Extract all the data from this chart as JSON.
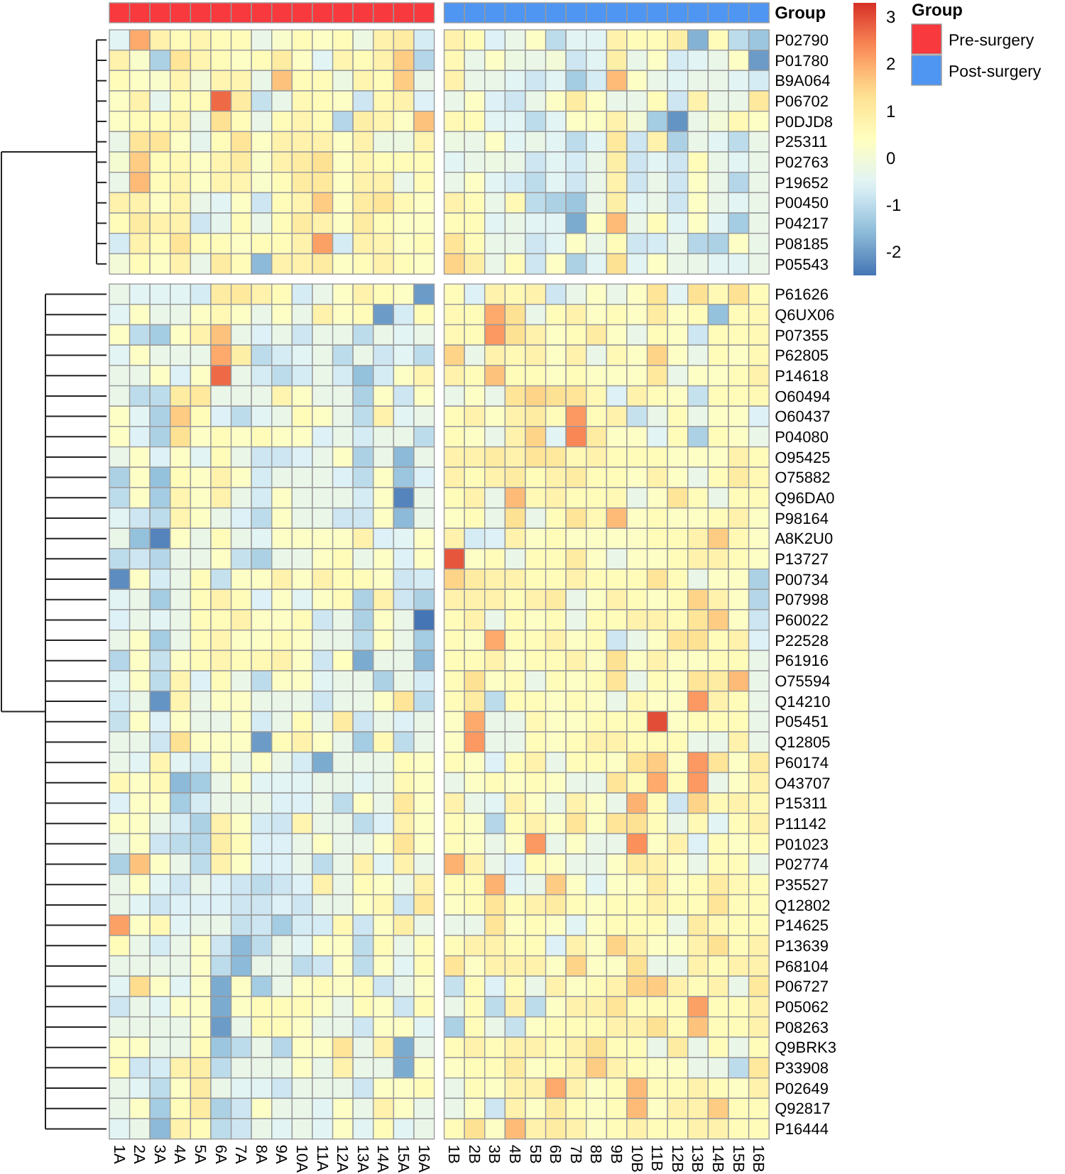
{
  "chart_data": {
    "type": "heatmap",
    "categories": [
      "1A",
      "2A",
      "3A",
      "4A",
      "5A",
      "6A",
      "7A",
      "8A",
      "9A",
      "10A",
      "11A",
      "12A",
      "13A",
      "14A",
      "15A",
      "16A",
      "1B",
      "2B",
      "3B",
      "4B",
      "5B",
      "6B",
      "7B",
      "8B",
      "9B",
      "10B",
      "11B",
      "12B",
      "13B",
      "14B",
      "15B",
      "16B"
    ],
    "y_categories": [
      "P02790",
      "P01780",
      "B9A064",
      "P06702",
      "P0DJD8",
      "P25311",
      "P02763",
      "P19652",
      "P00450",
      "P04217",
      "P08185",
      "P05543",
      "P61626",
      "Q6UX06",
      "P07355",
      "P62805",
      "P14618",
      "O60494",
      "O60437",
      "P04080",
      "O95425",
      "O75882",
      "Q96DA0",
      "P98164",
      "A8K2U0",
      "P13727",
      "P00734",
      "P07998",
      "P60022",
      "P22528",
      "P61916",
      "O75594",
      "Q14210",
      "P05451",
      "Q12805",
      "P60174",
      "O43707",
      "P15311",
      "P11142",
      "P01023",
      "P02774",
      "P35527",
      "Q12802",
      "P14625",
      "P13639",
      "P68104",
      "P06727",
      "P05062",
      "P08263",
      "Q9BRK3",
      "P33908",
      "P02649",
      "Q92817",
      "P16444"
    ],
    "clim": [
      -2.5,
      3.3
    ],
    "cticks": [
      -2,
      -1,
      0,
      1,
      2,
      3
    ],
    "annotations": [
      "Group",
      "Group",
      "Pre-surgery",
      "Post-surgery"
    ],
    "cells": [
      [
        -0.5,
        2,
        0.8,
        0.5,
        0.7,
        0.5,
        0.5,
        -0.3,
        0.2,
        0.5,
        0.3,
        0.5,
        -0.2,
        0.8,
        1,
        -0.7,
        0.8,
        0.5,
        -0.6,
        -0.3,
        0.3,
        -1,
        -0.5,
        -0.5,
        0.8,
        0.5,
        0.5,
        0.9,
        -1.7,
        0.5,
        -1,
        -1.4
      ],
      [
        0.8,
        0.2,
        -1.2,
        1.2,
        0.7,
        0.5,
        0.3,
        0.5,
        1,
        0.3,
        -0.5,
        0.7,
        0.5,
        0.8,
        1.6,
        -1.1,
        0.6,
        -0.3,
        0.3,
        -0.2,
        -0.3,
        0,
        -0.8,
        -0.5,
        0.9,
        -0.3,
        0.3,
        -0.7,
        -0.5,
        -0.3,
        0.3,
        -2
      ],
      [
        0.5,
        0.3,
        0.2,
        0.7,
        0,
        0.7,
        0.7,
        -0.3,
        1.7,
        0.5,
        0.5,
        -0.2,
        0.7,
        0.5,
        1.6,
        -0.3,
        0.8,
        -0.3,
        -0.3,
        -0.5,
        -0.8,
        -0.5,
        -1.3,
        -0.7,
        1.8,
        0.3,
        -0.3,
        -0.5,
        -0.3,
        -0.3,
        -0.5,
        -0.7
      ],
      [
        0.3,
        0.8,
        -0.4,
        0.5,
        0.5,
        2.7,
        1,
        -0.9,
        -0.3,
        0.6,
        0.5,
        0.3,
        -0.8,
        0.6,
        0.8,
        -0.6,
        -0.3,
        0.3,
        -0.6,
        -0.8,
        -0.3,
        0.3,
        1,
        0.3,
        -0.3,
        -0.3,
        0.5,
        -0.8,
        0.8,
        -0.3,
        -0.3,
        1.1
      ],
      [
        0.3,
        0.5,
        0.5,
        0.7,
        -0.3,
        1.3,
        0.5,
        -0.3,
        0.5,
        0.7,
        0.5,
        -1.1,
        0.9,
        0.7,
        0.3,
        1.7,
        0.6,
        0.5,
        -0.5,
        -0.5,
        -1,
        -0.5,
        0.3,
        0.3,
        0.8,
        0,
        -1.3,
        -2.1,
        -0.3,
        0,
        0.6,
        0.3
      ],
      [
        -0.3,
        1.2,
        1.2,
        0.3,
        -0.4,
        0.5,
        1.2,
        0.3,
        0.8,
        0.8,
        0.8,
        0.3,
        0.8,
        -0.2,
        -0.2,
        0.7,
        -0.2,
        -0.3,
        0.3,
        -0.5,
        -0.3,
        -0.5,
        -1,
        -0.5,
        1.1,
        -0.8,
        0.8,
        -1.2,
        -0.3,
        -0.5,
        -1,
        -0.3
      ],
      [
        0.1,
        1.6,
        0.5,
        0.6,
        0.3,
        0.7,
        1,
        0.2,
        0.8,
        1,
        1.3,
        0.3,
        0.7,
        0.5,
        0.5,
        0.5,
        -0.5,
        -0.3,
        -0.2,
        -0.3,
        -0.8,
        -0.5,
        -0.7,
        -0.3,
        0.9,
        -0.8,
        -0.5,
        -0.8,
        0.5,
        -0.3,
        -0.5,
        -0.3
      ],
      [
        -0.3,
        1.8,
        0.5,
        0.7,
        0.3,
        0.7,
        0.7,
        0.2,
        0.5,
        1,
        1.1,
        0.3,
        0.8,
        0.8,
        -0.3,
        0.5,
        -0.3,
        0.3,
        -0.5,
        -0.7,
        -1,
        -0.5,
        -0.8,
        -0.3,
        0.8,
        -0.8,
        -0.3,
        -0.8,
        0.3,
        -0.3,
        -1.1,
        -0.3
      ],
      [
        0.8,
        0.8,
        0.3,
        0.7,
        -0.3,
        -0.5,
        0.3,
        -0.8,
        0.5,
        0.7,
        1.6,
        0.3,
        1,
        1.2,
        0.6,
        0.3,
        0.8,
        0.5,
        -0.3,
        0.6,
        -1,
        -1.2,
        -1.4,
        -0.3,
        0.9,
        -0.5,
        -0.3,
        -0.8,
        0.3,
        -0.3,
        -0.5,
        -0.3
      ],
      [
        0.5,
        1,
        0.8,
        0.8,
        -0.8,
        -0.4,
        0.5,
        -0.3,
        0.5,
        1,
        0.8,
        0.3,
        1,
        0.5,
        0.3,
        0.3,
        0.5,
        0.5,
        -0.5,
        -0.3,
        -0.5,
        -0.5,
        -1.8,
        0.3,
        1.8,
        -0.3,
        0.5,
        -0.5,
        0.3,
        -0.5,
        -1.3,
        -0.3
      ],
      [
        -0.7,
        0.8,
        0.5,
        1.2,
        0.5,
        0.5,
        0.3,
        0.5,
        0.5,
        0.8,
        2.1,
        -0.7,
        0.8,
        0.7,
        0.3,
        0.5,
        1.2,
        0.5,
        -0.3,
        -0.3,
        -0.8,
        -0.5,
        0.3,
        -0.3,
        0.5,
        -0.8,
        -0.7,
        -0.3,
        -1.1,
        -1.2,
        0.3,
        -0.3
      ],
      [
        0,
        0.5,
        0.3,
        0.8,
        -0.3,
        1,
        0.5,
        -1.6,
        0.8,
        0.8,
        1,
        0.3,
        0.5,
        0.8,
        0.5,
        0.3,
        1.5,
        0.9,
        -0.3,
        0.5,
        -0.8,
        0.3,
        -1.2,
        -0.5,
        1.3,
        -0.5,
        0.3,
        -0.3,
        -0.3,
        -0.5,
        -0.5,
        -0.3
      ],
      [
        -0.3,
        -0.5,
        -0.5,
        -0.5,
        -0.7,
        1,
        1.1,
        0.8,
        0.5,
        -0.7,
        -0.3,
        0.3,
        0.8,
        0.5,
        0.3,
        -2,
        0.5,
        -0.6,
        0.8,
        0.6,
        0.8,
        -0.8,
        -0.3,
        0.3,
        -0.3,
        0.3,
        1.2,
        -0.5,
        1.3,
        0.6,
        1.3,
        0.5
      ],
      [
        -0.5,
        0.3,
        -0.3,
        -0.3,
        0.3,
        0.6,
        0.3,
        -0.3,
        0.3,
        -0.3,
        0.8,
        0.3,
        0.5,
        -2,
        -0.7,
        0.5,
        0.6,
        0.5,
        2,
        1.3,
        -0.3,
        0.5,
        0.8,
        0.3,
        0.5,
        0.3,
        1,
        0.3,
        0.5,
        -1.5,
        0.5,
        0.6
      ],
      [
        0.3,
        -1,
        -1.3,
        0.3,
        0.8,
        1.7,
        -0.3,
        -0.6,
        -0.3,
        -0.8,
        -0.3,
        -0.3,
        -1,
        -0.3,
        -0.5,
        -0.3,
        0.6,
        0.5,
        2.2,
        1.3,
        0.8,
        0.3,
        0.5,
        1,
        0.3,
        -0.3,
        0.5,
        0.3,
        -0.8,
        0.5,
        0.5,
        0.6
      ],
      [
        -0.5,
        0.3,
        -0.3,
        -0.3,
        -0.3,
        2,
        0.9,
        -1,
        -0.7,
        -0.5,
        -0.3,
        -1,
        -0.3,
        -0.8,
        -0.5,
        -1,
        1.5,
        -0.3,
        0.8,
        0.6,
        0.8,
        0.3,
        0.8,
        -0.3,
        0.6,
        0.3,
        1.5,
        0.3,
        -0.3,
        0.5,
        0.3,
        0.6
      ],
      [
        -0.3,
        -0.3,
        0.3,
        -0.6,
        0.3,
        2.7,
        -0.3,
        -0.7,
        -1,
        -0.7,
        -0.3,
        -0.7,
        -1.5,
        -0.7,
        0.3,
        0.7,
        0.8,
        0.5,
        1.7,
        0.5,
        0.5,
        0.3,
        0.5,
        0.3,
        0.3,
        0.3,
        1.1,
        -0.3,
        0.3,
        0.3,
        0.5,
        0.8
      ],
      [
        -0.3,
        -1,
        -1,
        1,
        1.1,
        -0.3,
        -0.3,
        -0.3,
        0.7,
        0.3,
        -0.3,
        -0.3,
        -1.2,
        0.3,
        -0.8,
        0.3,
        -0.3,
        0.3,
        -0.3,
        1.2,
        1.5,
        1.3,
        1.2,
        0.6,
        -0.6,
        0.8,
        0.5,
        0.3,
        -0.9,
        0.5,
        0.5,
        0.6
      ],
      [
        0.3,
        -0.5,
        -1.2,
        1.6,
        0.5,
        -0.6,
        -1,
        -0.5,
        -0.3,
        0.5,
        0.3,
        -0.3,
        -1,
        0.8,
        -0.5,
        -0.3,
        0.5,
        0.8,
        0.3,
        0.8,
        1,
        0.5,
        2.2,
        0.5,
        0.8,
        -0.9,
        -0.3,
        0.5,
        -0.3,
        0.3,
        0.3,
        -0.6
      ],
      [
        0.3,
        -0.6,
        -1.2,
        1.3,
        0.3,
        0.5,
        0.3,
        0.5,
        0.3,
        0.3,
        -0.6,
        -0.3,
        -0.7,
        -0.3,
        -0.3,
        -1,
        0.5,
        0.3,
        -0.3,
        0.8,
        1.5,
        -0.5,
        2.4,
        1,
        0.3,
        0.3,
        -0.5,
        0.5,
        -1.2,
        0.5,
        0.3,
        -0.3
      ],
      [
        -0.3,
        0.3,
        -0.6,
        0.3,
        -0.5,
        0.5,
        -0.3,
        -0.8,
        -0.8,
        -0.6,
        -0.3,
        0.3,
        -1.2,
        -0.3,
        -1.6,
        -0.3,
        0.8,
        0.8,
        1,
        0.8,
        1.2,
        1.1,
        0.6,
        0.8,
        0.5,
        0.5,
        0.5,
        0.3,
        0.3,
        0.3,
        0.8,
        0.5
      ],
      [
        -1.2,
        0.3,
        -1.5,
        0.5,
        0.3,
        0.8,
        0.3,
        -0.7,
        -0.3,
        -0.3,
        -0.3,
        -0.6,
        -1,
        0.3,
        -1.4,
        -0.6,
        0.8,
        0.5,
        0.8,
        1,
        0.5,
        0.8,
        1,
        0.5,
        0.5,
        0.3,
        0.8,
        0.3,
        -0.3,
        0.5,
        1,
        0.6
      ],
      [
        -1,
        0.3,
        -1.3,
        0.7,
        0.3,
        0.8,
        -0.3,
        -0.7,
        0.3,
        -0.3,
        -0.3,
        -0.3,
        -0.7,
        0.3,
        -2.3,
        -0.3,
        0.5,
        0.8,
        -0.3,
        1.8,
        0.6,
        0.8,
        0.5,
        0.5,
        0.6,
        -0.3,
        0.3,
        1.2,
        0.5,
        -0.3,
        0.5,
        0.5
      ],
      [
        -0.5,
        -0.8,
        -1,
        0.7,
        0.3,
        -0.3,
        -0.6,
        -1,
        0.3,
        -0.3,
        -0.3,
        -0.8,
        -0.8,
        0.3,
        -1.6,
        -0.3,
        0.3,
        0.5,
        -0.3,
        1.3,
        -0.3,
        0.5,
        1.2,
        0.6,
        1.8,
        0.3,
        0.5,
        0.3,
        0.3,
        0.5,
        0.8,
        0.3
      ],
      [
        -0.3,
        -1.5,
        -2.3,
        0.3,
        -0.3,
        0.5,
        -0.3,
        -0.5,
        0.3,
        0.3,
        0.3,
        0.3,
        0.8,
        -0.6,
        -0.5,
        0.3,
        0.8,
        -0.7,
        -0.6,
        0.8,
        0.3,
        0.5,
        0.3,
        0.3,
        0.3,
        0.3,
        0.5,
        0.5,
        0.8,
        1.6,
        0.6,
        0.3
      ],
      [
        -1,
        -0.8,
        -1.1,
        -0.3,
        -0.3,
        0.3,
        -0.9,
        -1.2,
        -0.3,
        -0.3,
        0.3,
        0.5,
        -0.3,
        0.3,
        -0.6,
        0.3,
        2.9,
        0.3,
        0.5,
        -0.3,
        0.5,
        0.5,
        1,
        0.3,
        -0.3,
        0.3,
        0.3,
        0.5,
        0.8,
        0.8,
        0.5,
        0.3
      ],
      [
        -2.2,
        0.3,
        -0.7,
        -0.3,
        0.5,
        -0.9,
        0.3,
        0.3,
        0.8,
        0.3,
        0.8,
        0.5,
        0.5,
        0.3,
        -0.8,
        -0.7,
        1.5,
        1,
        0.8,
        0.8,
        0.5,
        0.5,
        0.8,
        0.5,
        0.5,
        0.5,
        1.2,
        0.5,
        -0.3,
        0.3,
        0.3,
        -1.2
      ],
      [
        -0.5,
        -0.3,
        -1.3,
        -0.3,
        0.5,
        0.8,
        0.5,
        -0.6,
        0.3,
        -0.5,
        0.3,
        0.5,
        -1.2,
        0.8,
        -0.8,
        -1.2,
        0.8,
        0.8,
        0.8,
        0.5,
        0.8,
        1,
        -0.3,
        0.3,
        0.8,
        0.5,
        0.3,
        0.5,
        1.5,
        0.8,
        0.3,
        -1.1
      ],
      [
        -0.6,
        -0.3,
        -0.5,
        -0.3,
        0.5,
        0.5,
        0.8,
        0.3,
        0.3,
        0.5,
        -0.8,
        -0.3,
        -1.2,
        0.3,
        -0.3,
        -2.5,
        0.5,
        0.8,
        -0.3,
        0.5,
        0.3,
        0.5,
        -0.3,
        0.5,
        0.5,
        0.8,
        0.8,
        0.5,
        1.2,
        1.6,
        0.3,
        -0.8
      ],
      [
        -0.3,
        0.3,
        -1.3,
        -0.3,
        0.5,
        0.7,
        0.3,
        0.3,
        0.5,
        0.3,
        -0.3,
        -0.3,
        -1,
        0.3,
        -0.3,
        -1.3,
        0.5,
        0.3,
        2,
        0.5,
        0.5,
        0.8,
        0.3,
        0.5,
        -0.8,
        -0.3,
        0.3,
        1.2,
        1.3,
        0.5,
        0.8,
        -0.6
      ],
      [
        -1.1,
        0.3,
        -0.9,
        0.3,
        0.5,
        0.7,
        0.5,
        0.6,
        0.8,
        0.3,
        -0.8,
        0.4,
        -1.8,
        -0.3,
        -0.3,
        -1.6,
        0.5,
        0.5,
        0.8,
        0.3,
        0.5,
        0.5,
        0.8,
        0.3,
        1.3,
        0.3,
        0.8,
        0.3,
        0.3,
        0.5,
        0.5,
        -0.3
      ],
      [
        -0.5,
        0.3,
        -1,
        0.7,
        -0.6,
        0.5,
        -0.3,
        -1,
        0.3,
        0.3,
        -0.5,
        -0.3,
        -0.3,
        -1.2,
        -0.3,
        -0.7,
        0.5,
        1.3,
        0.3,
        0.5,
        -0.3,
        0.5,
        0.3,
        0.5,
        1.2,
        -0.3,
        0.5,
        0.3,
        1.2,
        1,
        1.8,
        -0.3
      ],
      [
        -0.7,
        -0.3,
        -2.1,
        0.7,
        -0.3,
        0.3,
        0.3,
        -0.3,
        -0.3,
        -0.3,
        -0.8,
        -0.3,
        -0.3,
        0.3,
        1.2,
        -1,
        0.5,
        1,
        -1,
        0.5,
        0.5,
        0.3,
        0.5,
        0.3,
        -0.3,
        0.6,
        0.3,
        0.3,
        2.2,
        0.8,
        0.5,
        -0.3
      ],
      [
        -0.9,
        0.3,
        -0.6,
        0.3,
        -0.3,
        -0.3,
        0.3,
        -0.7,
        -0.3,
        0.5,
        -0.3,
        1,
        -0.8,
        -0.3,
        -0.6,
        -0.3,
        0.3,
        2,
        -0.3,
        -0.3,
        0.6,
        0.3,
        0.3,
        0.5,
        0.5,
        0.5,
        3,
        0.3,
        0.5,
        0.5,
        0.5,
        -0.3
      ],
      [
        -0.3,
        -0.3,
        -0.8,
        1.3,
        0.3,
        0.3,
        0.3,
        -2,
        0.5,
        0.8,
        0.3,
        -0.3,
        -1.3,
        0.6,
        -1,
        -0.3,
        0.3,
        2.2,
        -0.3,
        -0.3,
        0.5,
        0.3,
        0.5,
        0.8,
        0.8,
        0.5,
        0.5,
        0.5,
        -0.3,
        -0.3,
        0.8,
        -0.3
      ],
      [
        -0.3,
        -0.5,
        0.7,
        -0.5,
        -0.7,
        0.3,
        -0.3,
        0.3,
        -0.3,
        -0.7,
        -1.8,
        -0.3,
        -0.3,
        -0.3,
        0.5,
        0.3,
        0.5,
        0.3,
        -0.6,
        0.5,
        0.8,
        -0.3,
        0.5,
        0.5,
        0.3,
        1.2,
        1.6,
        0.3,
        2.2,
        1.2,
        0.3,
        1
      ],
      [
        0.6,
        0.3,
        0.6,
        -1.6,
        -1.3,
        -0.3,
        0.3,
        -0.5,
        -0.5,
        -0.5,
        -0.3,
        -0.3,
        -0.5,
        -0.3,
        0.6,
        0.3,
        -0.3,
        0.3,
        0.5,
        0.3,
        0.5,
        0.3,
        -0.3,
        -0.3,
        1.2,
        0.5,
        2,
        0.5,
        2.2,
        -0.3,
        0.3,
        0.8
      ],
      [
        -0.6,
        0.3,
        0.3,
        -1.3,
        -0.7,
        -0.3,
        -0.3,
        -0.3,
        -0.6,
        -0.6,
        -0.3,
        -1,
        0.3,
        -0.3,
        1.1,
        0.3,
        0.8,
        -0.3,
        -0.5,
        0.8,
        0.3,
        -0.3,
        0.8,
        0.3,
        -0.3,
        1.9,
        0.5,
        -0.8,
        1.5,
        0.6,
        0.8,
        0.6
      ],
      [
        0.3,
        0.3,
        -0.3,
        -0.7,
        -1.2,
        0.8,
        0.3,
        -0.7,
        -0.8,
        0.7,
        -0.3,
        -0.3,
        -1,
        -0.6,
        0.8,
        0.3,
        0.5,
        0.3,
        -1.1,
        0.5,
        0.8,
        0.3,
        1.2,
        0.3,
        1.2,
        1.3,
        0.5,
        -0.3,
        0.6,
        -0.5,
        0.5,
        0.8
      ],
      [
        -0.3,
        0.3,
        -0.8,
        -1,
        -1.1,
        0.9,
        0.5,
        -0.6,
        -0.6,
        -0.3,
        0.3,
        -0.3,
        -0.3,
        0.3,
        1.2,
        0.3,
        0.5,
        0.3,
        -0.3,
        0.3,
        2.2,
        -0.3,
        0.3,
        -0.3,
        -0.3,
        2.3,
        0.3,
        0.8,
        -0.6,
        0.5,
        0.3,
        0.5
      ],
      [
        -1.2,
        1.7,
        0.3,
        -0.3,
        -1,
        0.8,
        0.3,
        -0.6,
        -0.6,
        -0.3,
        -1,
        -0.3,
        0.8,
        -0.5,
        0.8,
        -0.3,
        1.9,
        0.8,
        -0.3,
        -0.6,
        0.5,
        0.3,
        -0.3,
        -0.3,
        0.3,
        1,
        0.8,
        0.3,
        -0.3,
        0.5,
        0.5,
        -0.3
      ],
      [
        -0.3,
        0.3,
        -0.5,
        -0.8,
        -0.3,
        -0.6,
        -0.8,
        -1,
        -0.8,
        -0.6,
        0.8,
        -0.3,
        0.5,
        0.3,
        -0.3,
        0.8,
        0.5,
        0.5,
        1.9,
        -0.5,
        -0.3,
        1.6,
        0.3,
        -0.5,
        0.3,
        0.3,
        1,
        0.3,
        0.5,
        1,
        0.6,
        0.5
      ],
      [
        -0.3,
        -0.5,
        -0.8,
        -0.6,
        -0.6,
        -0.6,
        -0.8,
        -0.8,
        -0.6,
        -0.8,
        -0.3,
        -0.3,
        0.3,
        0.6,
        -0.8,
        1.1,
        0.3,
        0.5,
        1.2,
        0.5,
        0.8,
        1,
        0.5,
        0.3,
        0.5,
        0.5,
        0.8,
        0.5,
        0.5,
        1.2,
        0.5,
        0.5
      ],
      [
        2.1,
        0.3,
        0.6,
        -0.5,
        -0.3,
        -0.3,
        -0.9,
        -0.8,
        -1.3,
        -0.7,
        -0.7,
        0.6,
        -0.8,
        0.3,
        0.9,
        -0.3,
        -0.3,
        -0.3,
        1.2,
        0.3,
        0.5,
        0.3,
        -0.5,
        0.3,
        0.5,
        0.5,
        0.5,
        -0.3,
        1,
        0.6,
        0.5,
        0.5
      ],
      [
        0.5,
        -0.3,
        -0.7,
        -0.3,
        0.3,
        -0.8,
        -1.6,
        -1,
        -0.3,
        -0.5,
        0.3,
        0.3,
        -1,
        0.5,
        -0.3,
        0.5,
        0.5,
        0.8,
        0.8,
        0.5,
        0.5,
        -0.6,
        0.8,
        0.3,
        1.5,
        0.8,
        0.3,
        0.3,
        0.8,
        1.3,
        0.5,
        0.8
      ],
      [
        -0.3,
        -0.3,
        -0.3,
        -0.3,
        0.3,
        -1,
        -1.6,
        -0.3,
        -0.3,
        -1,
        -0.8,
        0.3,
        -1,
        0.3,
        -0.5,
        0.5,
        1.2,
        0.3,
        0.8,
        0.8,
        0.8,
        0.3,
        1.5,
        0.3,
        0.3,
        1.3,
        -0.3,
        -0.3,
        0.8,
        0.5,
        0.8,
        0.8
      ],
      [
        -0.5,
        1.4,
        0.3,
        -0.5,
        0.3,
        -1.8,
        0.3,
        -1.3,
        -0.3,
        0.3,
        0.5,
        0.3,
        0.5,
        -0.8,
        -0.3,
        0.3,
        -0.9,
        0.5,
        -0.6,
        0.5,
        -0.3,
        0.8,
        0.3,
        0.5,
        0.8,
        1.5,
        1.6,
        0.8,
        0.5,
        0.8,
        -0.3,
        1.1
      ],
      [
        -0.8,
        -0.3,
        -0.5,
        0.3,
        0.3,
        -1.8,
        0.3,
        0.5,
        0.5,
        0.5,
        0.3,
        -0.3,
        0.5,
        0.3,
        -0.8,
        0.5,
        -0.3,
        0.5,
        -1,
        0.8,
        -1,
        0.3,
        0.8,
        0.8,
        1.2,
        0.5,
        0.5,
        0.5,
        2.1,
        0.5,
        0.5,
        0.8
      ],
      [
        -0.3,
        -0.3,
        -0.3,
        -0.3,
        0.3,
        -2,
        -0.3,
        0.5,
        0.5,
        0.3,
        -0.3,
        -0.3,
        -0.8,
        0.3,
        0.3,
        -0.5,
        -1.2,
        0.5,
        -0.3,
        -0.9,
        0.3,
        0.5,
        0.5,
        0.5,
        0.8,
        0.8,
        1.3,
        0.5,
        1.7,
        0.5,
        0.5,
        0.8
      ],
      [
        0.3,
        0.3,
        -0.3,
        -0.3,
        0.5,
        -1.4,
        -1,
        -0.3,
        -1.1,
        0.3,
        0.3,
        1.2,
        -0.3,
        0.8,
        -1.8,
        -0.3,
        0.5,
        0.8,
        0.5,
        0.8,
        0.8,
        0.5,
        0.8,
        1.3,
        0.5,
        0.5,
        -0.3,
        1,
        -0.3,
        0.5,
        -0.3,
        0.5
      ],
      [
        0.5,
        -0.8,
        -0.7,
        0.8,
        0.9,
        -1,
        -0.3,
        -0.3,
        -0.3,
        0.3,
        -0.3,
        0.8,
        -0.3,
        -0.3,
        -1.8,
        0.3,
        0.3,
        0.5,
        0.5,
        1,
        0.3,
        0.5,
        0.8,
        1.6,
        0.8,
        0.5,
        0.3,
        0.3,
        -0.3,
        -0.3,
        -1,
        1.1
      ],
      [
        -0.3,
        -0.5,
        -1,
        0.3,
        1,
        -0.3,
        -0.5,
        -0.5,
        -0.8,
        -0.3,
        -0.3,
        -0.3,
        -0.8,
        0.3,
        0.3,
        0.5,
        -0.3,
        0.5,
        0.3,
        0.8,
        0.8,
        2,
        0.8,
        0.3,
        0.5,
        1.8,
        0.5,
        0.5,
        0.8,
        0.5,
        0.3,
        0.8
      ],
      [
        -0.3,
        0.3,
        -1.3,
        0.5,
        1,
        -1.2,
        -0.8,
        0.3,
        -0.3,
        -0.3,
        -0.5,
        0.3,
        -0.3,
        0.8,
        0.3,
        -0.3,
        -0.3,
        0.3,
        -0.8,
        0.8,
        0.3,
        1,
        0.5,
        0.3,
        0.5,
        1.8,
        0.3,
        0.8,
        0.8,
        1.6,
        0.5,
        0.5
      ],
      [
        -0.5,
        -0.3,
        -1.6,
        0.8,
        0.5,
        -1,
        -0.8,
        -0.3,
        -0.5,
        -0.3,
        -0.5,
        0.3,
        -0.5,
        0.5,
        -0.5,
        -0.3,
        0.5,
        1.3,
        0.3,
        1.8,
        0.8,
        1,
        0.8,
        0.3,
        0.5,
        0.8,
        0.5,
        0.5,
        0.8,
        0.8,
        0.5,
        0.5
      ]
    ]
  }
}
